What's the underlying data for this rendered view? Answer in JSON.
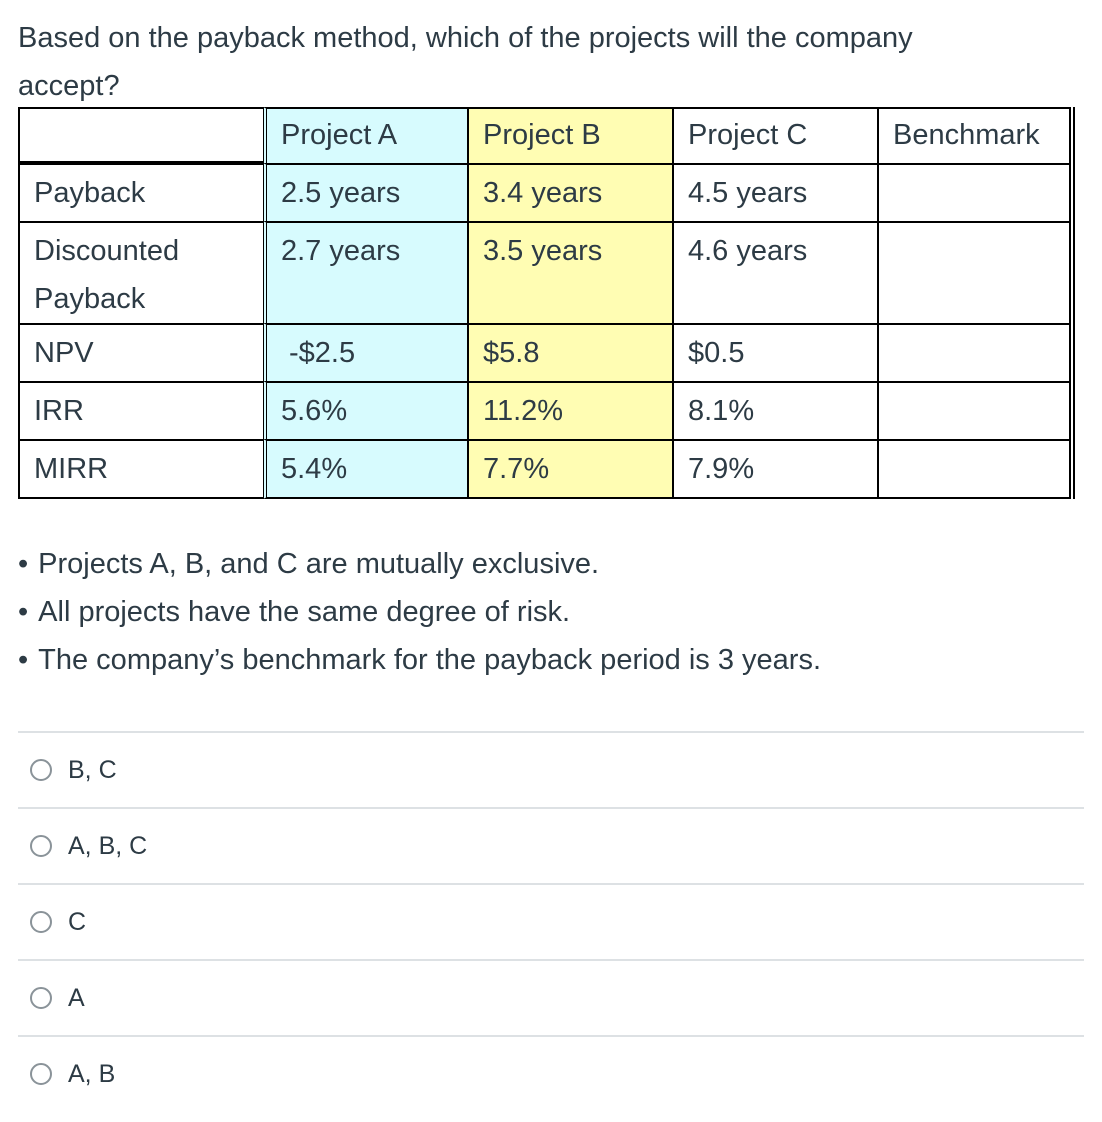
{
  "question": "Based on the payback method, which of the projects will the company accept?",
  "table": {
    "headers": [
      "",
      "Project A",
      "Project B",
      "Project C",
      "Benchmark"
    ],
    "rows": [
      {
        "label": "Payback",
        "a": "2.5 years",
        "b": "3.4 years",
        "c": "4.5 years",
        "benchmark": ""
      },
      {
        "label": "Discounted Payback",
        "a": "2.7 years",
        "b": "3.5 years",
        "c": "4.6 years",
        "benchmark": ""
      },
      {
        "label": "NPV",
        "a": "-$2.5",
        "b": "$5.8",
        "c": "$0.5",
        "benchmark": ""
      },
      {
        "label": "IRR",
        "a": "5.6%",
        "b": "11.2%",
        "c": "8.1%",
        "benchmark": ""
      },
      {
        "label": "MIRR",
        "a": "5.4%",
        "b": "7.7%",
        "c": "7.9%",
        "benchmark": ""
      }
    ]
  },
  "notes": [
    "Projects A, B, and C are mutually exclusive.",
    "All projects have the same degree of risk.",
    "The company’s benchmark for the payback period is 3 years."
  ],
  "answers": [
    "B, C",
    "A, B, C",
    "C",
    "A",
    "A, B"
  ],
  "colors": {
    "project_a_bg": "#d7fbfe",
    "project_b_bg": "#fffdb3",
    "divider": "#dde1e4"
  }
}
